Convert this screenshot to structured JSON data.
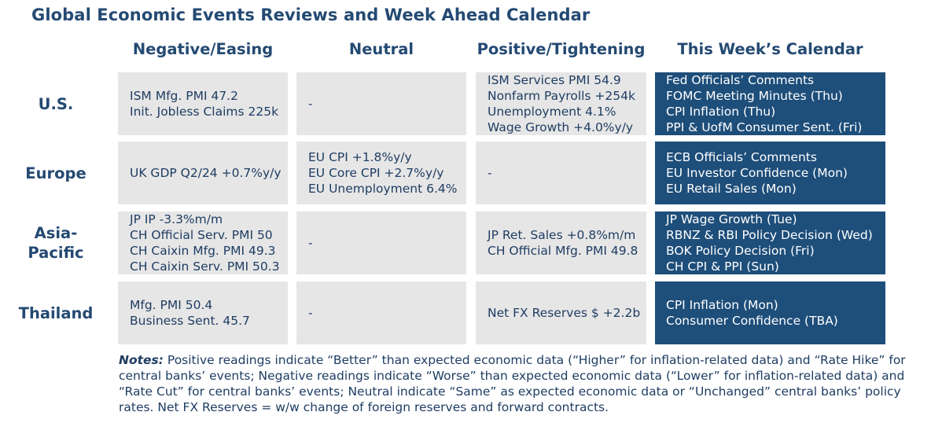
{
  "title": "Global Economic Events Reviews and Week Ahead Calendar",
  "columns": [
    "Negative/Easing",
    "Neutral",
    "Positive/Tightening",
    "This Week’s Calendar"
  ],
  "rows": [
    {
      "region": "U.S.",
      "negative": [
        "ISM Mfg. PMI 47.2",
        "Init. Jobless Claims 225k"
      ],
      "neutral": [
        "-"
      ],
      "positive": [
        "ISM Services PMI 54.9",
        "Nonfarm Payrolls +254k",
        "Unemployment 4.1%",
        "Wage Growth +4.0%y/y"
      ],
      "calendar": [
        "Fed Officials’ Comments",
        "FOMC Meeting Minutes (Thu)",
        "CPI Inflation (Thu)",
        "PPI & UofM Consumer Sent. (Fri)"
      ]
    },
    {
      "region": "Europe",
      "negative": [
        "UK GDP Q2/24 +0.7%y/y"
      ],
      "neutral": [
        "EU CPI +1.8%y/y",
        "EU Core CPI +2.7%y/y",
        "EU Unemployment 6.4%"
      ],
      "positive": [
        "-"
      ],
      "calendar": [
        "ECB Officials’ Comments",
        "EU Investor Confidence (Mon)",
        "EU Retail Sales (Mon)"
      ]
    },
    {
      "region": "Asia-Pacific",
      "region_lines": [
        "Asia-",
        "Pacific"
      ],
      "negative": [
        "JP IP -3.3%m/m",
        "CH Official Serv. PMI 50",
        "CH Caixin Mfg. PMI 49.3",
        "CH Caixin Serv. PMI 50.3"
      ],
      "neutral": [
        "-"
      ],
      "positive": [
        "JP Ret. Sales +0.8%m/m",
        "CH Official Mfg. PMI 49.8"
      ],
      "calendar": [
        "JP Wage Growth (Tue)",
        "RBNZ & RBI Policy Decision (Wed)",
        "BOK Policy Decision (Fri)",
        "CH CPI & PPI (Sun)"
      ]
    },
    {
      "region": "Thailand",
      "negative": [
        "Mfg. PMI 50.4",
        "Business Sent. 45.7"
      ],
      "neutral": [
        "-"
      ],
      "positive": [
        "Net FX Reserves $ +2.2b"
      ],
      "calendar": [
        "CPI Inflation (Mon)",
        "Consumer Confidence (TBA)"
      ]
    }
  ],
  "notes": {
    "label": "Notes:",
    "text": " Positive readings indicate “Better” than expected economic data (“Higher” for inflation-related data) and “Rate Hike” for central banks’ events; Negative readings indicate “Worse” than expected economic data (“Lower” for inflation-related data) and “Rate Cut” for central banks’ events; Neutral indicate “Same” as expected economic data or “Unchanged” central banks’ policy rates. Net FX Reserves = w/w change of foreign reserves and forward contracts."
  },
  "colors": {
    "heading": "#244a73",
    "cell_gray": "#e6e6e6",
    "calendar_blue": "#1e4e7a"
  }
}
